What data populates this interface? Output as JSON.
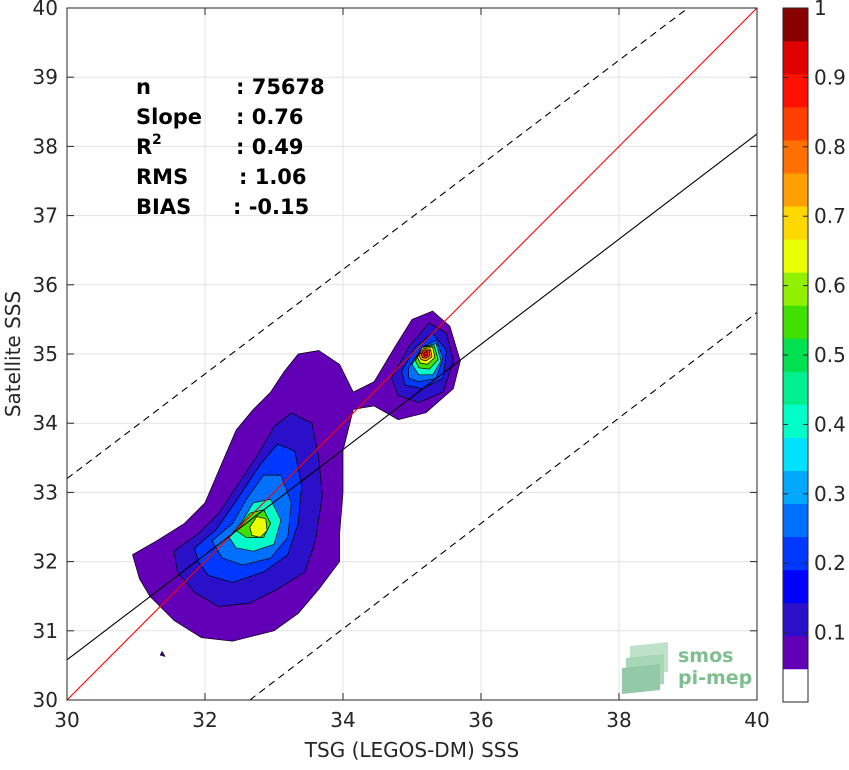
{
  "chart_data": {
    "type": "heatmap",
    "subtype": "filled-contour density scatter",
    "xlabel": "TSG (LEGOS-DM) SSS",
    "ylabel": "Satellite SSS",
    "xlim": [
      30,
      40
    ],
    "ylim": [
      30,
      40
    ],
    "xticks": [
      30,
      32,
      34,
      36,
      38,
      40
    ],
    "yticks": [
      30,
      31,
      32,
      33,
      34,
      35,
      36,
      37,
      38,
      39,
      40
    ],
    "grid": true,
    "stats": [
      {
        "label": "n",
        "sup": "",
        "value": ": 75678"
      },
      {
        "label": "Slope",
        "sup": "",
        "value": ": 0.76"
      },
      {
        "label": "R",
        "sup": "2",
        "value": ": 0.49"
      },
      {
        "label": "RMS",
        "sup": "",
        "value": ": 1.06"
      },
      {
        "label": "BIAS",
        "sup": "",
        "value": ": -0.15"
      }
    ],
    "lines": [
      {
        "role": "identity",
        "color": "#ff0000",
        "style": "solid",
        "points": [
          [
            30,
            30
          ],
          [
            40,
            40
          ]
        ]
      },
      {
        "role": "regression",
        "color": "#000000",
        "style": "solid",
        "points": [
          [
            30,
            30.58
          ],
          [
            40,
            38.18
          ]
        ]
      },
      {
        "role": "upper-bound",
        "color": "#000000",
        "style": "dashed",
        "points": [
          [
            30,
            33.2
          ],
          [
            39,
            40
          ]
        ]
      },
      {
        "role": "lower-bound",
        "color": "#000000",
        "style": "dashed",
        "points": [
          [
            32.65,
            30
          ],
          [
            40,
            35.6
          ]
        ]
      }
    ],
    "colorbar": {
      "min": 0,
      "max": 1,
      "ticks": [
        0.1,
        0.2,
        0.3,
        0.4,
        0.5,
        0.6,
        0.7,
        0.8,
        0.9,
        1
      ],
      "tick_labels": [
        "0.1",
        "0.2",
        "0.3",
        "0.4",
        "0.5",
        "0.6",
        "0.7",
        "0.8",
        "0.9",
        "1"
      ],
      "colors": [
        "#ffffff",
        "#6200b8",
        "#2a10c8",
        "#0000ff",
        "#0038ff",
        "#0070ff",
        "#00a8ff",
        "#00e0ff",
        "#00ffc8",
        "#00f090",
        "#00e050",
        "#40e000",
        "#90f000",
        "#e8ff00",
        "#ffd800",
        "#ffa000",
        "#ff7000",
        "#ff4000",
        "#ff1000",
        "#e00000",
        "#880000"
      ]
    },
    "contours": [
      {
        "level_index": 1,
        "polygons": [
          [
            [
              30.95,
              32.1
            ],
            [
              31.3,
              32.3
            ],
            [
              31.7,
              32.55
            ],
            [
              32.0,
              32.85
            ],
            [
              32.15,
              33.2
            ],
            [
              32.3,
              33.55
            ],
            [
              32.45,
              33.9
            ],
            [
              32.7,
              34.2
            ],
            [
              32.95,
              34.45
            ],
            [
              33.15,
              34.75
            ],
            [
              33.35,
              35.0
            ],
            [
              33.65,
              35.05
            ],
            [
              33.95,
              34.85
            ],
            [
              34.15,
              34.45
            ],
            [
              34.45,
              34.6
            ],
            [
              34.75,
              35.1
            ],
            [
              35.0,
              35.5
            ],
            [
              35.3,
              35.62
            ],
            [
              35.55,
              35.4
            ],
            [
              35.7,
              34.9
            ],
            [
              35.6,
              34.5
            ],
            [
              35.2,
              34.15
            ],
            [
              34.8,
              34.05
            ],
            [
              34.45,
              34.25
            ],
            [
              34.15,
              34.2
            ],
            [
              34.0,
              33.6
            ],
            [
              34.0,
              33.0
            ],
            [
              33.95,
              32.4
            ],
            [
              33.95,
              32.0
            ],
            [
              33.65,
              31.6
            ],
            [
              33.35,
              31.25
            ],
            [
              33.0,
              31.0
            ],
            [
              32.4,
              30.85
            ],
            [
              31.95,
              30.9
            ],
            [
              31.55,
              31.15
            ],
            [
              31.2,
              31.5
            ],
            [
              31.05,
              31.75
            ]
          ],
          [
            [
              31.35,
              30.65
            ],
            [
              31.38,
              30.7
            ],
            [
              31.42,
              30.63
            ]
          ]
        ]
      },
      {
        "level_index": 2,
        "polygons": [
          [
            [
              31.55,
              32.15
            ],
            [
              31.9,
              32.4
            ],
            [
              32.2,
              32.7
            ],
            [
              32.4,
              33.0
            ],
            [
              32.6,
              33.3
            ],
            [
              32.8,
              33.6
            ],
            [
              33.0,
              33.95
            ],
            [
              33.25,
              34.15
            ],
            [
              33.55,
              34.0
            ],
            [
              33.65,
              33.5
            ],
            [
              33.7,
              32.95
            ],
            [
              33.6,
              32.3
            ],
            [
              33.45,
              31.85
            ],
            [
              33.05,
              31.6
            ],
            [
              32.65,
              31.4
            ],
            [
              32.2,
              31.35
            ],
            [
              31.85,
              31.55
            ],
            [
              31.6,
              31.85
            ]
          ],
          [
            [
              34.7,
              34.65
            ],
            [
              34.95,
              35.1
            ],
            [
              35.25,
              35.45
            ],
            [
              35.5,
              35.3
            ],
            [
              35.6,
              34.9
            ],
            [
              35.45,
              34.45
            ],
            [
              35.1,
              34.3
            ],
            [
              34.8,
              34.4
            ]
          ]
        ]
      },
      {
        "level_index": 4,
        "polygons": [
          [
            [
              31.85,
              32.2
            ],
            [
              32.15,
              32.45
            ],
            [
              32.4,
              32.8
            ],
            [
              32.6,
              33.1
            ],
            [
              32.8,
              33.4
            ],
            [
              33.05,
              33.7
            ],
            [
              33.3,
              33.6
            ],
            [
              33.4,
              33.1
            ],
            [
              33.35,
              32.55
            ],
            [
              33.2,
              32.1
            ],
            [
              32.85,
              31.85
            ],
            [
              32.4,
              31.7
            ],
            [
              32.05,
              31.8
            ],
            [
              31.9,
              32.0
            ]
          ],
          [
            [
              34.85,
              34.75
            ],
            [
              35.05,
              35.1
            ],
            [
              35.3,
              35.3
            ],
            [
              35.5,
              35.05
            ],
            [
              35.45,
              34.65
            ],
            [
              35.15,
              34.5
            ],
            [
              34.9,
              34.55
            ]
          ]
        ]
      },
      {
        "level_index": 5,
        "polygons": [
          [
            [
              32.1,
              32.3
            ],
            [
              32.4,
              32.55
            ],
            [
              32.6,
              32.9
            ],
            [
              32.85,
              33.25
            ],
            [
              33.1,
              33.25
            ],
            [
              33.25,
              32.85
            ],
            [
              33.2,
              32.35
            ],
            [
              32.95,
              32.05
            ],
            [
              32.55,
              31.95
            ],
            [
              32.25,
              32.05
            ]
          ],
          [
            [
              34.95,
              34.8
            ],
            [
              35.15,
              35.1
            ],
            [
              35.35,
              35.2
            ],
            [
              35.45,
              34.95
            ],
            [
              35.35,
              34.65
            ],
            [
              35.1,
              34.6
            ],
            [
              34.95,
              34.65
            ]
          ]
        ]
      },
      {
        "level_index": 8,
        "polygons": [
          [
            [
              32.35,
              32.35
            ],
            [
              32.55,
              32.6
            ],
            [
              32.7,
              32.85
            ],
            [
              32.95,
              32.9
            ],
            [
              33.1,
              32.6
            ],
            [
              33.0,
              32.25
            ],
            [
              32.7,
              32.15
            ],
            [
              32.45,
              32.2
            ]
          ],
          [
            [
              35.0,
              34.85
            ],
            [
              35.15,
              35.1
            ],
            [
              35.35,
              35.15
            ],
            [
              35.42,
              34.9
            ],
            [
              35.3,
              34.7
            ],
            [
              35.1,
              34.7
            ]
          ]
        ]
      },
      {
        "level_index": 11,
        "polygons": [
          [
            [
              32.45,
              32.45
            ],
            [
              32.65,
              32.7
            ],
            [
              32.85,
              32.75
            ],
            [
              32.95,
              32.55
            ],
            [
              32.85,
              32.35
            ],
            [
              32.6,
              32.35
            ]
          ],
          [
            [
              35.05,
              34.9
            ],
            [
              35.15,
              35.1
            ],
            [
              35.32,
              35.12
            ],
            [
              35.38,
              34.92
            ],
            [
              35.25,
              34.78
            ],
            [
              35.1,
              34.8
            ]
          ]
        ]
      },
      {
        "level_index": 13,
        "polygons": [
          [
            [
              32.65,
              32.5
            ],
            [
              32.75,
              32.65
            ],
            [
              32.88,
              32.62
            ],
            [
              32.9,
              32.45
            ],
            [
              32.8,
              32.35
            ],
            [
              32.68,
              32.38
            ]
          ],
          [
            [
              35.08,
              34.95
            ],
            [
              35.15,
              35.1
            ],
            [
              35.3,
              35.1
            ],
            [
              35.33,
              34.95
            ],
            [
              35.22,
              34.85
            ],
            [
              35.12,
              34.87
            ]
          ]
        ]
      },
      {
        "level_index": 15,
        "polygons": [
          [
            [
              35.1,
              34.98
            ],
            [
              35.17,
              35.08
            ],
            [
              35.27,
              35.07
            ],
            [
              35.29,
              34.96
            ],
            [
              35.2,
              34.9
            ],
            [
              35.13,
              34.92
            ]
          ]
        ]
      },
      {
        "level_index": 17,
        "polygons": [
          [
            [
              35.13,
              35.0
            ],
            [
              35.18,
              35.06
            ],
            [
              35.25,
              35.05
            ],
            [
              35.26,
              34.98
            ],
            [
              35.2,
              34.94
            ],
            [
              35.15,
              34.95
            ]
          ]
        ]
      },
      {
        "level_index": 19,
        "polygons": [
          [
            [
              35.16,
              35.0
            ],
            [
              35.2,
              35.04
            ],
            [
              35.23,
              35.02
            ],
            [
              35.22,
              34.98
            ],
            [
              35.18,
              34.97
            ]
          ]
        ]
      }
    ]
  },
  "logo": {
    "line1": "smos",
    "line2": "pi-mep",
    "color": "#7fbf8f"
  }
}
